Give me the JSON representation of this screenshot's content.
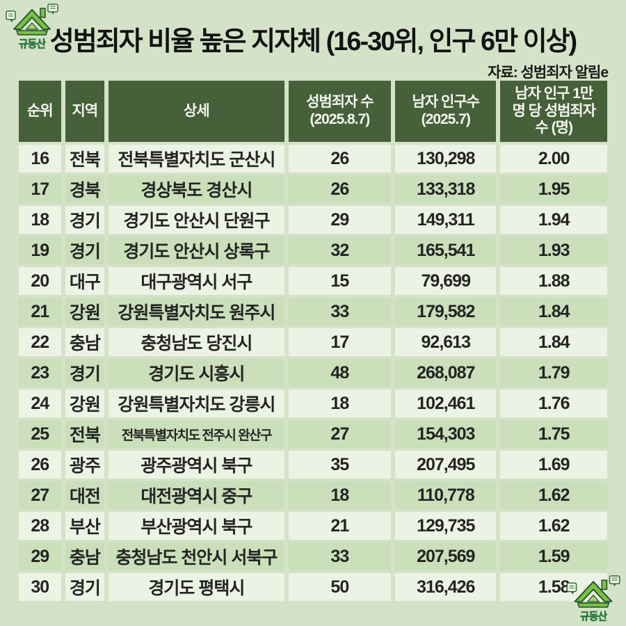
{
  "page": {
    "title": "성범죄자 비율 높은 지자체 (16-30위, 인구 6만 이상)",
    "source": "자료: 성범죄자 알림e",
    "logo_text": "규동산"
  },
  "colors": {
    "page_background": "#d4e2c7",
    "header_background": "#46603a",
    "header_text": "#f3f5ee",
    "row_light": "#edf3e4",
    "row_alt": "#cadfba",
    "data_text": "#242424",
    "logo_green": "#7ac143",
    "logo_dark_green": "#1e4d2b"
  },
  "table": {
    "header": [
      {
        "lines": [
          "순위"
        ]
      },
      {
        "lines": [
          "지역"
        ]
      },
      {
        "lines": [
          "상세"
        ]
      },
      {
        "lines": [
          "성범죄자 수",
          "(2025.8.7)"
        ]
      },
      {
        "lines": [
          "남자 인구수",
          "(2025.7)"
        ]
      },
      {
        "lines": [
          "남자 인구 1만",
          "명 당 성범죄자",
          "수 (명)"
        ]
      }
    ],
    "rows": [
      {
        "rank": "16",
        "region": "전북",
        "detail": "전북특별자치도 군산시",
        "offenders": "26",
        "male_population": "130,298",
        "rate_per_10k": "2.00"
      },
      {
        "rank": "17",
        "region": "경북",
        "detail": "경상북도 경산시",
        "offenders": "26",
        "male_population": "133,318",
        "rate_per_10k": "1.95"
      },
      {
        "rank": "18",
        "region": "경기",
        "detail": "경기도 안산시 단원구",
        "offenders": "29",
        "male_population": "149,311",
        "rate_per_10k": "1.94"
      },
      {
        "rank": "19",
        "region": "경기",
        "detail": "경기도 안산시 상록구",
        "offenders": "32",
        "male_population": "165,541",
        "rate_per_10k": "1.93"
      },
      {
        "rank": "20",
        "region": "대구",
        "detail": "대구광역시 서구",
        "offenders": "15",
        "male_population": "79,699",
        "rate_per_10k": "1.88"
      },
      {
        "rank": "21",
        "region": "강원",
        "detail": "강원특별자치도 원주시",
        "offenders": "33",
        "male_population": "179,582",
        "rate_per_10k": "1.84"
      },
      {
        "rank": "22",
        "region": "충남",
        "detail": "충청남도 당진시",
        "offenders": "17",
        "male_population": "92,613",
        "rate_per_10k": "1.84"
      },
      {
        "rank": "23",
        "region": "경기",
        "detail": "경기도 시흥시",
        "offenders": "48",
        "male_population": "268,087",
        "rate_per_10k": "1.79"
      },
      {
        "rank": "24",
        "region": "강원",
        "detail": "강원특별자치도 강릉시",
        "offenders": "18",
        "male_population": "102,461",
        "rate_per_10k": "1.76"
      },
      {
        "rank": "25",
        "region": "전북",
        "detail": "전북특별자치도 전주시 완산구",
        "offenders": "27",
        "male_population": "154,303",
        "rate_per_10k": "1.75"
      },
      {
        "rank": "26",
        "region": "광주",
        "detail": "광주광역시 북구",
        "offenders": "35",
        "male_population": "207,495",
        "rate_per_10k": "1.69"
      },
      {
        "rank": "27",
        "region": "대전",
        "detail": "대전광역시 중구",
        "offenders": "18",
        "male_population": "110,778",
        "rate_per_10k": "1.62"
      },
      {
        "rank": "28",
        "region": "부산",
        "detail": "부산광역시 북구",
        "offenders": "21",
        "male_population": "129,735",
        "rate_per_10k": "1.62"
      },
      {
        "rank": "29",
        "region": "충남",
        "detail": "충청남도 천안시 서북구",
        "offenders": "33",
        "male_population": "207,569",
        "rate_per_10k": "1.59"
      },
      {
        "rank": "30",
        "region": "경기",
        "detail": "경기도 평택시",
        "offenders": "50",
        "male_population": "316,426",
        "rate_per_10k": "1.58"
      }
    ]
  },
  "chart_data": {
    "type": "table",
    "title": "성범죄자 비율 높은 지자체 (16-30위, 인구 6만 이상)",
    "source": "자료: 성범죄자 알림e",
    "columns": [
      "순위",
      "지역",
      "상세",
      "성범죄자 수 (2025.8.7)",
      "남자 인구수 (2025.7)",
      "남자 인구 1만 명 당 성범죄자 수 (명)"
    ],
    "rows": [
      [
        16,
        "전북",
        "전북특별자치도 군산시",
        26,
        130298,
        2.0
      ],
      [
        17,
        "경북",
        "경상북도 경산시",
        26,
        133318,
        1.95
      ],
      [
        18,
        "경기",
        "경기도 안산시 단원구",
        29,
        149311,
        1.94
      ],
      [
        19,
        "경기",
        "경기도 안산시 상록구",
        32,
        165541,
        1.93
      ],
      [
        20,
        "대구",
        "대구광역시 서구",
        15,
        79699,
        1.88
      ],
      [
        21,
        "강원",
        "강원특별자치도 원주시",
        33,
        179582,
        1.84
      ],
      [
        22,
        "충남",
        "충청남도 당진시",
        17,
        92613,
        1.84
      ],
      [
        23,
        "경기",
        "경기도 시흥시",
        48,
        268087,
        1.79
      ],
      [
        24,
        "강원",
        "강원특별자치도 강릉시",
        18,
        102461,
        1.76
      ],
      [
        25,
        "전북",
        "전북특별자치도 전주시 완산구",
        27,
        154303,
        1.75
      ],
      [
        26,
        "광주",
        "광주광역시 북구",
        35,
        207495,
        1.69
      ],
      [
        27,
        "대전",
        "대전광역시 중구",
        18,
        110778,
        1.62
      ],
      [
        28,
        "부산",
        "부산광역시 북구",
        21,
        129735,
        1.62
      ],
      [
        29,
        "충남",
        "충청남도 천안시 서북구",
        33,
        207569,
        1.59
      ],
      [
        30,
        "경기",
        "경기도 평택시",
        50,
        316426,
        1.58
      ]
    ]
  }
}
